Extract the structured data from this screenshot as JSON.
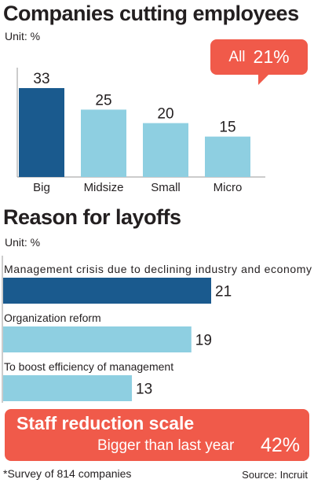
{
  "charts": [
    {
      "title": "Companies cutting employees",
      "unit": "Unit: %",
      "chart_data": {
        "type": "bar",
        "categories": [
          "Big",
          "Midsize",
          "Small",
          "Micro"
        ],
        "values": [
          33,
          25,
          20,
          15
        ],
        "ylim": [
          0,
          40
        ]
      },
      "callout": {
        "label": "All",
        "value": "21%"
      },
      "colors": {
        "highlight": "#1a5a8e",
        "bar": "#8ecfe1",
        "axis": "#9a9a9a"
      }
    },
    {
      "title": "Reason for layoffs",
      "unit": "Unit: %",
      "chart_data": {
        "type": "bar",
        "orientation": "horizontal",
        "categories": [
          "Management crisis due to declining  industry and economy",
          "Organization reform",
          "To boost efficiency of management"
        ],
        "values": [
          21,
          19,
          13
        ],
        "xlim": [
          0,
          25
        ]
      },
      "colors": {
        "highlight": "#1a5a8e",
        "bar": "#8ecfe1",
        "axis": "#9a9a9a"
      }
    }
  ],
  "banner": {
    "title": "Staff reduction scale",
    "subtitle": "Bigger than last year",
    "value": "42%",
    "color": "#f05a4a"
  },
  "footnote": "*Survey of 814 companies",
  "source": "Source: Incruit"
}
